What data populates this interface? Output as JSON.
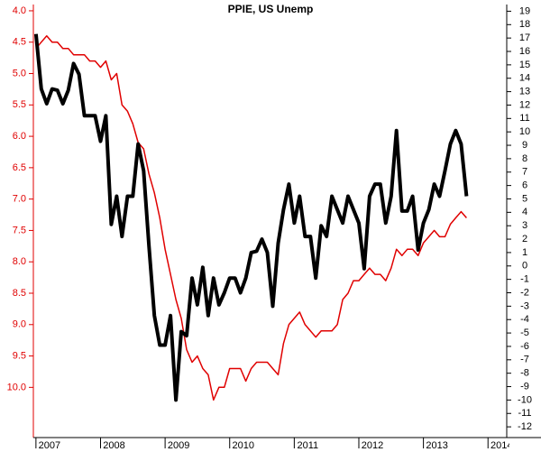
{
  "chart_data": {
    "type": "line",
    "title": "PPIE, US Unemp",
    "x": [
      2007.0,
      2007.083,
      2007.167,
      2007.25,
      2007.333,
      2007.417,
      2007.5,
      2007.583,
      2007.667,
      2007.75,
      2007.833,
      2007.917,
      2008.0,
      2008.083,
      2008.167,
      2008.25,
      2008.333,
      2008.417,
      2008.5,
      2008.583,
      2008.667,
      2008.75,
      2008.833,
      2008.917,
      2009.0,
      2009.083,
      2009.167,
      2009.25,
      2009.333,
      2009.417,
      2009.5,
      2009.583,
      2009.667,
      2009.75,
      2009.833,
      2009.917,
      2010.0,
      2010.083,
      2010.167,
      2010.25,
      2010.333,
      2010.417,
      2010.5,
      2010.583,
      2010.667,
      2010.75,
      2010.833,
      2010.917,
      2011.0,
      2011.083,
      2011.167,
      2011.25,
      2011.333,
      2011.417,
      2011.5,
      2011.583,
      2011.667,
      2011.75,
      2011.833,
      2011.917,
      2012.0,
      2012.083,
      2012.167,
      2012.25,
      2012.333,
      2012.417,
      2012.5,
      2012.583,
      2012.667,
      2012.75,
      2012.833,
      2012.917,
      2013.0,
      2013.083,
      2013.167,
      2013.25,
      2013.333,
      2013.417,
      2013.5,
      2013.583,
      2013.667
    ],
    "series": [
      {
        "name": "US Unemp",
        "color": "#e00000",
        "axis": "y",
        "width": 1.5,
        "values": [
          4.6,
          4.5,
          4.4,
          4.5,
          4.5,
          4.6,
          4.6,
          4.7,
          4.7,
          4.7,
          4.8,
          4.8,
          4.9,
          4.8,
          5.1,
          5.0,
          5.5,
          5.6,
          5.8,
          6.1,
          6.2,
          6.6,
          6.9,
          7.3,
          7.8,
          8.2,
          8.6,
          8.9,
          9.4,
          9.6,
          9.5,
          9.7,
          9.8,
          10.2,
          10.0,
          10.0,
          9.7,
          9.7,
          9.7,
          9.9,
          9.7,
          9.6,
          9.6,
          9.6,
          9.7,
          9.8,
          9.3,
          9.0,
          8.9,
          8.8,
          9.0,
          9.1,
          9.2,
          9.1,
          9.1,
          9.1,
          9.0,
          8.6,
          8.5,
          8.3,
          8.3,
          8.2,
          8.1,
          8.2,
          8.2,
          8.3,
          8.1,
          7.8,
          7.9,
          7.8,
          7.8,
          7.9,
          7.7,
          7.6,
          7.5,
          7.6,
          7.6,
          7.4,
          7.3,
          7.2,
          7.3
        ]
      },
      {
        "name": "PPIE",
        "color": "#000000",
        "axis": "y2",
        "width": 4,
        "values": [
          17.3,
          13.2,
          12.1,
          13.2,
          13.1,
          12.1,
          13.1,
          15.1,
          14.3,
          11.2,
          11.2,
          11.2,
          9.3,
          11.2,
          3.1,
          5.2,
          2.2,
          5.2,
          5.2,
          9.1,
          7.1,
          1.5,
          -3.7,
          -5.9,
          -5.9,
          -3.7,
          -10.0,
          -4.9,
          -5.2,
          -0.9,
          -2.9,
          -0.1,
          -3.7,
          -0.9,
          -2.9,
          -2.0,
          -0.9,
          -0.9,
          -2.0,
          -0.9,
          1.0,
          1.1,
          2.0,
          1.0,
          -3.0,
          1.7,
          4.2,
          6.1,
          3.2,
          5.2,
          2.2,
          2.2,
          -0.9,
          3.0,
          2.2,
          5.2,
          4.2,
          3.2,
          5.2,
          4.2,
          3.2,
          -0.2,
          5.2,
          6.1,
          6.1,
          3.2,
          5.2,
          10.1,
          4.1,
          4.1,
          5.2,
          1.2,
          3.2,
          4.2,
          6.1,
          5.2,
          7.1,
          9.1,
          10.1,
          9.1,
          5.2
        ]
      }
    ],
    "xlim": [
      2006.96,
      2014.29
    ],
    "xticks": [
      2007,
      2008,
      2009,
      2010,
      2011,
      2012,
      2013,
      2014
    ],
    "ylim": [
      10.8,
      3.9
    ],
    "yticks": [
      {
        "value": 4.0,
        "label": "4.0"
      },
      {
        "value": 4.5,
        "label": "4.5"
      },
      {
        "value": 5.0,
        "label": "5.0"
      },
      {
        "value": 5.5,
        "label": "5.5"
      },
      {
        "value": 6.0,
        "label": "6.0"
      },
      {
        "value": 6.5,
        "label": "6.5"
      },
      {
        "value": 7.0,
        "label": "7.0"
      },
      {
        "value": 7.5,
        "label": "7.5"
      },
      {
        "value": 8.0,
        "label": "8.0"
      },
      {
        "value": 8.5,
        "label": "8.5"
      },
      {
        "value": 9.0,
        "label": "9.0"
      },
      {
        "value": 9.5,
        "label": "9.5"
      },
      {
        "value": 10.0,
        "label": "10.0"
      }
    ],
    "y2lim": [
      -12.8,
      19.5
    ],
    "y2ticks": [
      19,
      18,
      17,
      16,
      15,
      14,
      13,
      12,
      11,
      10,
      9,
      8,
      7,
      6,
      5,
      4,
      3,
      2,
      1,
      0,
      -1,
      -2,
      -3,
      -4,
      -5,
      -6,
      -7,
      -8,
      -9,
      -10,
      -11,
      -12
    ],
    "y_axis_color": "#e00000",
    "grid": false
  }
}
